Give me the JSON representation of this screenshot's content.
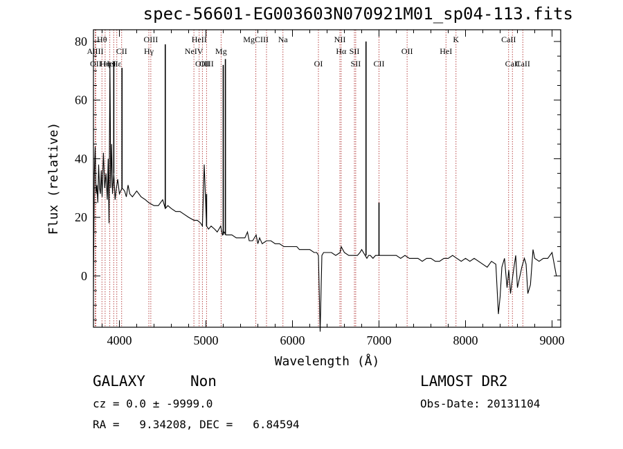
{
  "title": "spec-56601-EG003603N070921M01_sp04-113.fits",
  "info": {
    "class": "GALAXY",
    "subclass": "Non",
    "survey": "LAMOST DR2",
    "cz": "cz = 0.0 ± -9999.0",
    "obs_date": "Obs-Date: 20131104",
    "radec": "RA =   9.34208, DEC =   6.84594"
  },
  "chart_data": {
    "type": "line",
    "title": "spec-56601-EG003603N070921M01_sp04-113.fits",
    "xlabel": "Wavelength (Å)",
    "ylabel": "Flux (relative)",
    "xlim": [
      3700,
      9100
    ],
    "ylim": [
      -17.5,
      84
    ],
    "xticks": [
      4000,
      5000,
      6000,
      7000,
      8000,
      9000
    ],
    "yticks": [
      0,
      20,
      40,
      60,
      80
    ],
    "grid": false,
    "legend": "none",
    "series": [
      {
        "x": [
          3700,
          3710,
          3720,
          3730,
          3740,
          3750,
          3760,
          3770,
          3780,
          3790,
          3800,
          3815,
          3830,
          3845,
          3860,
          3870,
          3880,
          3890,
          3900,
          3910,
          3920,
          3935,
          3950,
          3965,
          3980,
          4000,
          4030,
          4060,
          4080,
          4100,
          4120,
          4150,
          4200,
          4250,
          4300,
          4340,
          4400,
          4450,
          4500,
          4530,
          4560,
          4600,
          4650,
          4700,
          4750,
          4800,
          4861,
          4900,
          4940,
          4959,
          4980,
          5007,
          5030,
          5060,
          5100,
          5130,
          5150,
          5170,
          5190,
          5210,
          5230,
          5260,
          5300,
          5350,
          5400,
          5450,
          5480,
          5500,
          5540,
          5580,
          5600,
          5620,
          5650,
          5700,
          5750,
          5800,
          5850,
          5900,
          5950,
          6000,
          6050,
          6080,
          6100,
          6150,
          6200,
          6250,
          6280,
          6300,
          6320,
          6340,
          6360,
          6400,
          6450,
          6500,
          6550,
          6563,
          6600,
          6650,
          6700,
          6750,
          6780,
          6800,
          6840,
          6860,
          6880,
          6900,
          6930,
          6960,
          6980,
          7000,
          7050,
          7100,
          7150,
          7200,
          7250,
          7300,
          7350,
          7400,
          7450,
          7500,
          7550,
          7600,
          7650,
          7700,
          7750,
          7800,
          7850,
          7900,
          7950,
          8000,
          8050,
          8100,
          8150,
          8200,
          8250,
          8300,
          8350,
          8380,
          8400,
          8420,
          8450,
          8480,
          8500,
          8520,
          8550,
          8580,
          8600,
          8650,
          8680,
          8700,
          8720,
          8750,
          8780,
          8800,
          8850,
          8900,
          8950,
          9000,
          9050
        ],
        "values": [
          -4,
          35,
          44,
          28,
          31,
          25,
          38,
          30,
          28,
          36,
          27,
          42,
          30,
          35,
          26,
          40,
          18,
          73,
          30,
          45,
          28,
          35,
          26,
          30,
          33,
          28,
          30,
          29,
          27,
          31,
          28,
          27,
          29,
          27,
          26,
          25,
          24,
          24,
          26,
          23,
          24,
          23,
          22,
          22,
          21,
          20,
          19,
          19,
          18,
          17,
          38,
          17,
          16,
          17,
          16,
          15,
          16,
          17,
          14,
          15,
          14,
          14,
          14,
          13,
          13,
          13,
          15,
          12,
          12,
          14,
          11,
          13,
          11,
          12,
          12,
          11,
          11,
          10,
          10,
          10,
          10,
          9,
          9,
          9,
          9,
          8,
          8,
          7,
          -19,
          7,
          8,
          8,
          8,
          7,
          8,
          10,
          8,
          7,
          7,
          7,
          8,
          9,
          7,
          6,
          7,
          7,
          6,
          7,
          7,
          7,
          7,
          7,
          7,
          7,
          6,
          7,
          6,
          6,
          6,
          5,
          6,
          6,
          5,
          5,
          6,
          6,
          7,
          6,
          5,
          6,
          5,
          6,
          5,
          4,
          3,
          5,
          4,
          -13,
          -7,
          3,
          6,
          -4,
          2,
          -6,
          1,
          7,
          -4,
          3,
          6,
          4,
          -6,
          -3,
          9,
          6,
          5,
          6,
          6,
          8,
          0
        ]
      }
    ],
    "spikes": [
      {
        "x": 3935,
        "y": 73
      },
      {
        "x": 4030,
        "y": 71
      },
      {
        "x": 4530,
        "y": 79
      },
      {
        "x": 5007,
        "y": 28
      },
      {
        "x": 5200,
        "y": 72
      },
      {
        "x": 5225,
        "y": 74
      },
      {
        "x": 6850,
        "y": 80
      },
      {
        "x": 7000,
        "y": 25
      }
    ],
    "lines": [
      {
        "x": 3720,
        "label": "AlIII",
        "row": 1
      },
      {
        "x": 3727,
        "label": "OII",
        "row": 2
      },
      {
        "x": 3798,
        "label": "Hθ",
        "row": 0
      },
      {
        "x": 3835,
        "label": "Hη",
        "row": 2
      },
      {
        "x": 3889,
        "label": "HeI",
        "row": 2
      },
      {
        "x": 3934,
        "label": "",
        "row": 2
      },
      {
        "x": 3970,
        "label": "Hε",
        "row": 2
      },
      {
        "x": 4026,
        "label": "CII",
        "row": 1
      },
      {
        "x": 4340,
        "label": "Hγ",
        "row": 1
      },
      {
        "x": 4363,
        "label": "OIII",
        "row": 0
      },
      {
        "x": 4861,
        "label": "NeIV",
        "row": 1
      },
      {
        "x": 4922,
        "label": "HeII",
        "row": 0
      },
      {
        "x": 4959,
        "label": "OIII",
        "row": 2
      },
      {
        "x": 5007,
        "label": "OIII",
        "row": 2
      },
      {
        "x": 5175,
        "label": "Mg",
        "row": 1
      },
      {
        "x": 5577,
        "label": "MgCIII",
        "row": 0
      },
      {
        "x": 5700,
        "label": "",
        "row": 0
      },
      {
        "x": 5890,
        "label": "Na",
        "row": 0
      },
      {
        "x": 6300,
        "label": "OI",
        "row": 2
      },
      {
        "x": 6548,
        "label": "NII",
        "row": 0
      },
      {
        "x": 6563,
        "label": "Hα",
        "row": 1
      },
      {
        "x": 6716,
        "label": "SII",
        "row": 1
      },
      {
        "x": 6731,
        "label": "SII",
        "row": 2
      },
      {
        "x": 7000,
        "label": "CII",
        "row": 2
      },
      {
        "x": 7325,
        "label": "OII",
        "row": 1
      },
      {
        "x": 7774,
        "label": "HeI",
        "row": 1
      },
      {
        "x": 7890,
        "label": "K",
        "row": 0
      },
      {
        "x": 8498,
        "label": "CaII",
        "row": 0
      },
      {
        "x": 8542,
        "label": "CaII",
        "row": 2
      },
      {
        "x": 8662,
        "label": "CaII",
        "row": 2
      }
    ]
  }
}
